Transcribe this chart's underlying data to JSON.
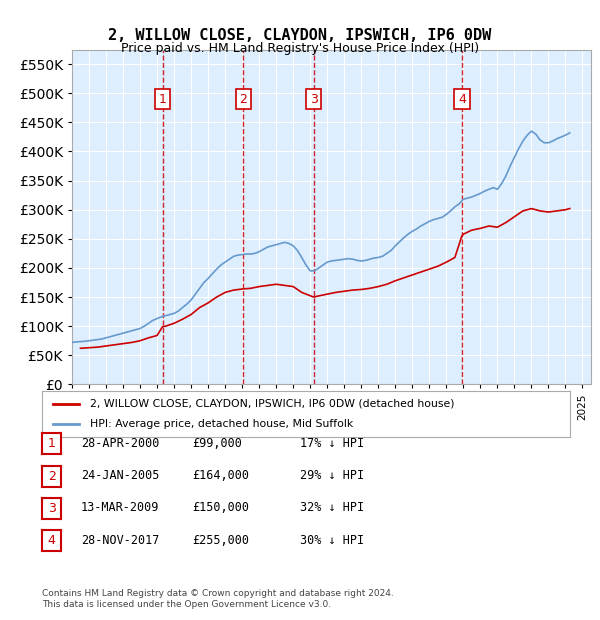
{
  "title": "2, WILLOW CLOSE, CLAYDON, IPSWICH, IP6 0DW",
  "subtitle": "Price paid vs. HM Land Registry's House Price Index (HPI)",
  "ylabel": "",
  "ylim": [
    0,
    575000
  ],
  "yticks": [
    0,
    50000,
    100000,
    150000,
    200000,
    250000,
    300000,
    350000,
    400000,
    450000,
    500000,
    550000
  ],
  "xlim_start": 1995.0,
  "xlim_end": 2025.5,
  "background_color": "#ffffff",
  "plot_bg_color": "#ddeeff",
  "grid_color": "#ffffff",
  "sale_color": "#cc0000",
  "hpi_color": "#6699cc",
  "legend_sale_label": "2, WILLOW CLOSE, CLAYDON, IPSWICH, IP6 0DW (detached house)",
  "legend_hpi_label": "HPI: Average price, detached house, Mid Suffolk",
  "transactions": [
    {
      "num": 1,
      "date": "28-APR-2000",
      "price": 99000,
      "pct": "17%",
      "x_year": 2000.32
    },
    {
      "num": 2,
      "date": "24-JAN-2005",
      "price": 164000,
      "pct": "29%",
      "x_year": 2005.07
    },
    {
      "num": 3,
      "date": "13-MAR-2009",
      "price": 150000,
      "pct": "32%",
      "x_year": 2009.2
    },
    {
      "num": 4,
      "date": "28-NOV-2017",
      "price": 255000,
      "pct": "30%",
      "x_year": 2017.91
    }
  ],
  "footer": "Contains HM Land Registry data © Crown copyright and database right 2024.\nThis data is licensed under the Open Government Licence v3.0.",
  "hpi_data_x": [
    1995.0,
    1995.25,
    1995.5,
    1995.75,
    1996.0,
    1996.25,
    1996.5,
    1996.75,
    1997.0,
    1997.25,
    1997.5,
    1997.75,
    1998.0,
    1998.25,
    1998.5,
    1998.75,
    1999.0,
    1999.25,
    1999.5,
    1999.75,
    2000.0,
    2000.25,
    2000.5,
    2000.75,
    2001.0,
    2001.25,
    2001.5,
    2001.75,
    2002.0,
    2002.25,
    2002.5,
    2002.75,
    2003.0,
    2003.25,
    2003.5,
    2003.75,
    2004.0,
    2004.25,
    2004.5,
    2004.75,
    2005.0,
    2005.25,
    2005.5,
    2005.75,
    2006.0,
    2006.25,
    2006.5,
    2006.75,
    2007.0,
    2007.25,
    2007.5,
    2007.75,
    2008.0,
    2008.25,
    2008.5,
    2008.75,
    2009.0,
    2009.25,
    2009.5,
    2009.75,
    2010.0,
    2010.25,
    2010.5,
    2010.75,
    2011.0,
    2011.25,
    2011.5,
    2011.75,
    2012.0,
    2012.25,
    2012.5,
    2012.75,
    2013.0,
    2013.25,
    2013.5,
    2013.75,
    2014.0,
    2014.25,
    2014.5,
    2014.75,
    2015.0,
    2015.25,
    2015.5,
    2015.75,
    2016.0,
    2016.25,
    2016.5,
    2016.75,
    2017.0,
    2017.25,
    2017.5,
    2017.75,
    2018.0,
    2018.25,
    2018.5,
    2018.75,
    2019.0,
    2019.25,
    2019.5,
    2019.75,
    2020.0,
    2020.25,
    2020.5,
    2020.75,
    2021.0,
    2021.25,
    2021.5,
    2021.75,
    2022.0,
    2022.25,
    2022.5,
    2022.75,
    2023.0,
    2023.25,
    2023.5,
    2023.75,
    2024.0,
    2024.25
  ],
  "hpi_data_y": [
    72000,
    73000,
    73500,
    74000,
    75000,
    76000,
    77000,
    78000,
    80000,
    82000,
    84000,
    86000,
    88000,
    90000,
    92000,
    94000,
    96000,
    100000,
    105000,
    110000,
    113000,
    116000,
    118000,
    120000,
    122000,
    126000,
    132000,
    138000,
    145000,
    155000,
    165000,
    175000,
    182000,
    190000,
    198000,
    205000,
    210000,
    215000,
    220000,
    222000,
    223000,
    224000,
    224000,
    225000,
    228000,
    232000,
    236000,
    238000,
    240000,
    242000,
    244000,
    242000,
    238000,
    230000,
    218000,
    205000,
    195000,
    195000,
    200000,
    205000,
    210000,
    212000,
    213000,
    214000,
    215000,
    216000,
    215000,
    213000,
    212000,
    213000,
    215000,
    217000,
    218000,
    220000,
    225000,
    230000,
    238000,
    245000,
    252000,
    258000,
    263000,
    267000,
    272000,
    276000,
    280000,
    283000,
    285000,
    287000,
    292000,
    298000,
    305000,
    310000,
    318000,
    320000,
    322000,
    325000,
    328000,
    332000,
    335000,
    338000,
    335000,
    345000,
    358000,
    375000,
    390000,
    405000,
    418000,
    428000,
    435000,
    430000,
    420000,
    415000,
    415000,
    418000,
    422000,
    425000,
    428000,
    432000
  ],
  "sale_data_x": [
    1995.5,
    1996.0,
    1996.5,
    1997.0,
    1997.5,
    1998.0,
    1998.5,
    1999.0,
    1999.5,
    2000.0,
    2000.32,
    2000.5,
    2001.0,
    2001.5,
    2002.0,
    2002.5,
    2003.0,
    2003.5,
    2004.0,
    2004.5,
    2005.07,
    2005.5,
    2006.0,
    2006.5,
    2007.0,
    2007.5,
    2008.0,
    2008.5,
    2009.2,
    2009.5,
    2010.0,
    2010.5,
    2011.0,
    2011.5,
    2012.0,
    2012.5,
    2013.0,
    2013.5,
    2014.0,
    2014.5,
    2015.0,
    2015.5,
    2016.0,
    2016.5,
    2017.0,
    2017.5,
    2017.91,
    2018.0,
    2018.5,
    2019.0,
    2019.5,
    2020.0,
    2020.5,
    2021.0,
    2021.5,
    2022.0,
    2022.5,
    2023.0,
    2023.5,
    2024.0,
    2024.25
  ],
  "sale_data_y": [
    62000,
    63000,
    64000,
    66000,
    68000,
    70000,
    72000,
    75000,
    80000,
    84000,
    99000,
    100000,
    105000,
    112000,
    120000,
    132000,
    140000,
    150000,
    158000,
    162000,
    164000,
    165000,
    168000,
    170000,
    172000,
    170000,
    168000,
    158000,
    150000,
    152000,
    155000,
    158000,
    160000,
    162000,
    163000,
    165000,
    168000,
    172000,
    178000,
    183000,
    188000,
    193000,
    198000,
    203000,
    210000,
    218000,
    255000,
    258000,
    265000,
    268000,
    272000,
    270000,
    278000,
    288000,
    298000,
    302000,
    298000,
    296000,
    298000,
    300000,
    302000
  ]
}
